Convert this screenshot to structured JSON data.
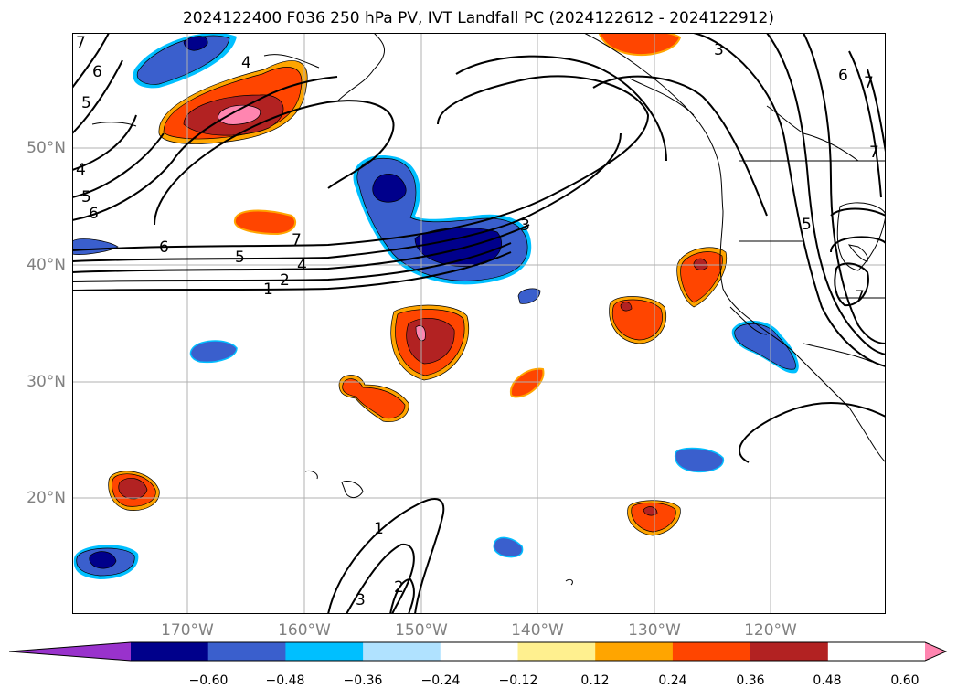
{
  "title": "2024122400 F036 250 hPa PV, IVT Landfall PC (2024122612 - 2024122912)",
  "lat_labels": [
    "50°N",
    "40°N",
    "30°N",
    "20°N"
  ],
  "lon_labels": [
    "170°W",
    "160°W",
    "150°W",
    "140°W",
    "130°W",
    "120°W"
  ],
  "colorbar": {
    "tick_labels": [
      "−0.60",
      "−0.48",
      "−0.36",
      "−0.24",
      "−0.12",
      "0.12",
      "0.24",
      "0.36",
      "0.48",
      "0.60"
    ],
    "colors": [
      "#9932cc",
      "#00008b",
      "#3a5fcd",
      "#00bfff",
      "#b0e2ff",
      "#ffffff",
      "#fff08f",
      "#ffa500",
      "#ff4500",
      "#b22222",
      "#ff85b0"
    ]
  },
  "contour_labels": [
    "7",
    "6",
    "5",
    "4",
    "5",
    "6",
    "4",
    "6",
    "5",
    "4",
    "2",
    "1",
    "7",
    "3",
    "3",
    "6",
    "7",
    "7",
    "5",
    "7",
    "1",
    "2",
    "3"
  ],
  "colors": {
    "gridline": "#b0b0b0",
    "contour": "#000000",
    "tick_text": "#808080"
  }
}
